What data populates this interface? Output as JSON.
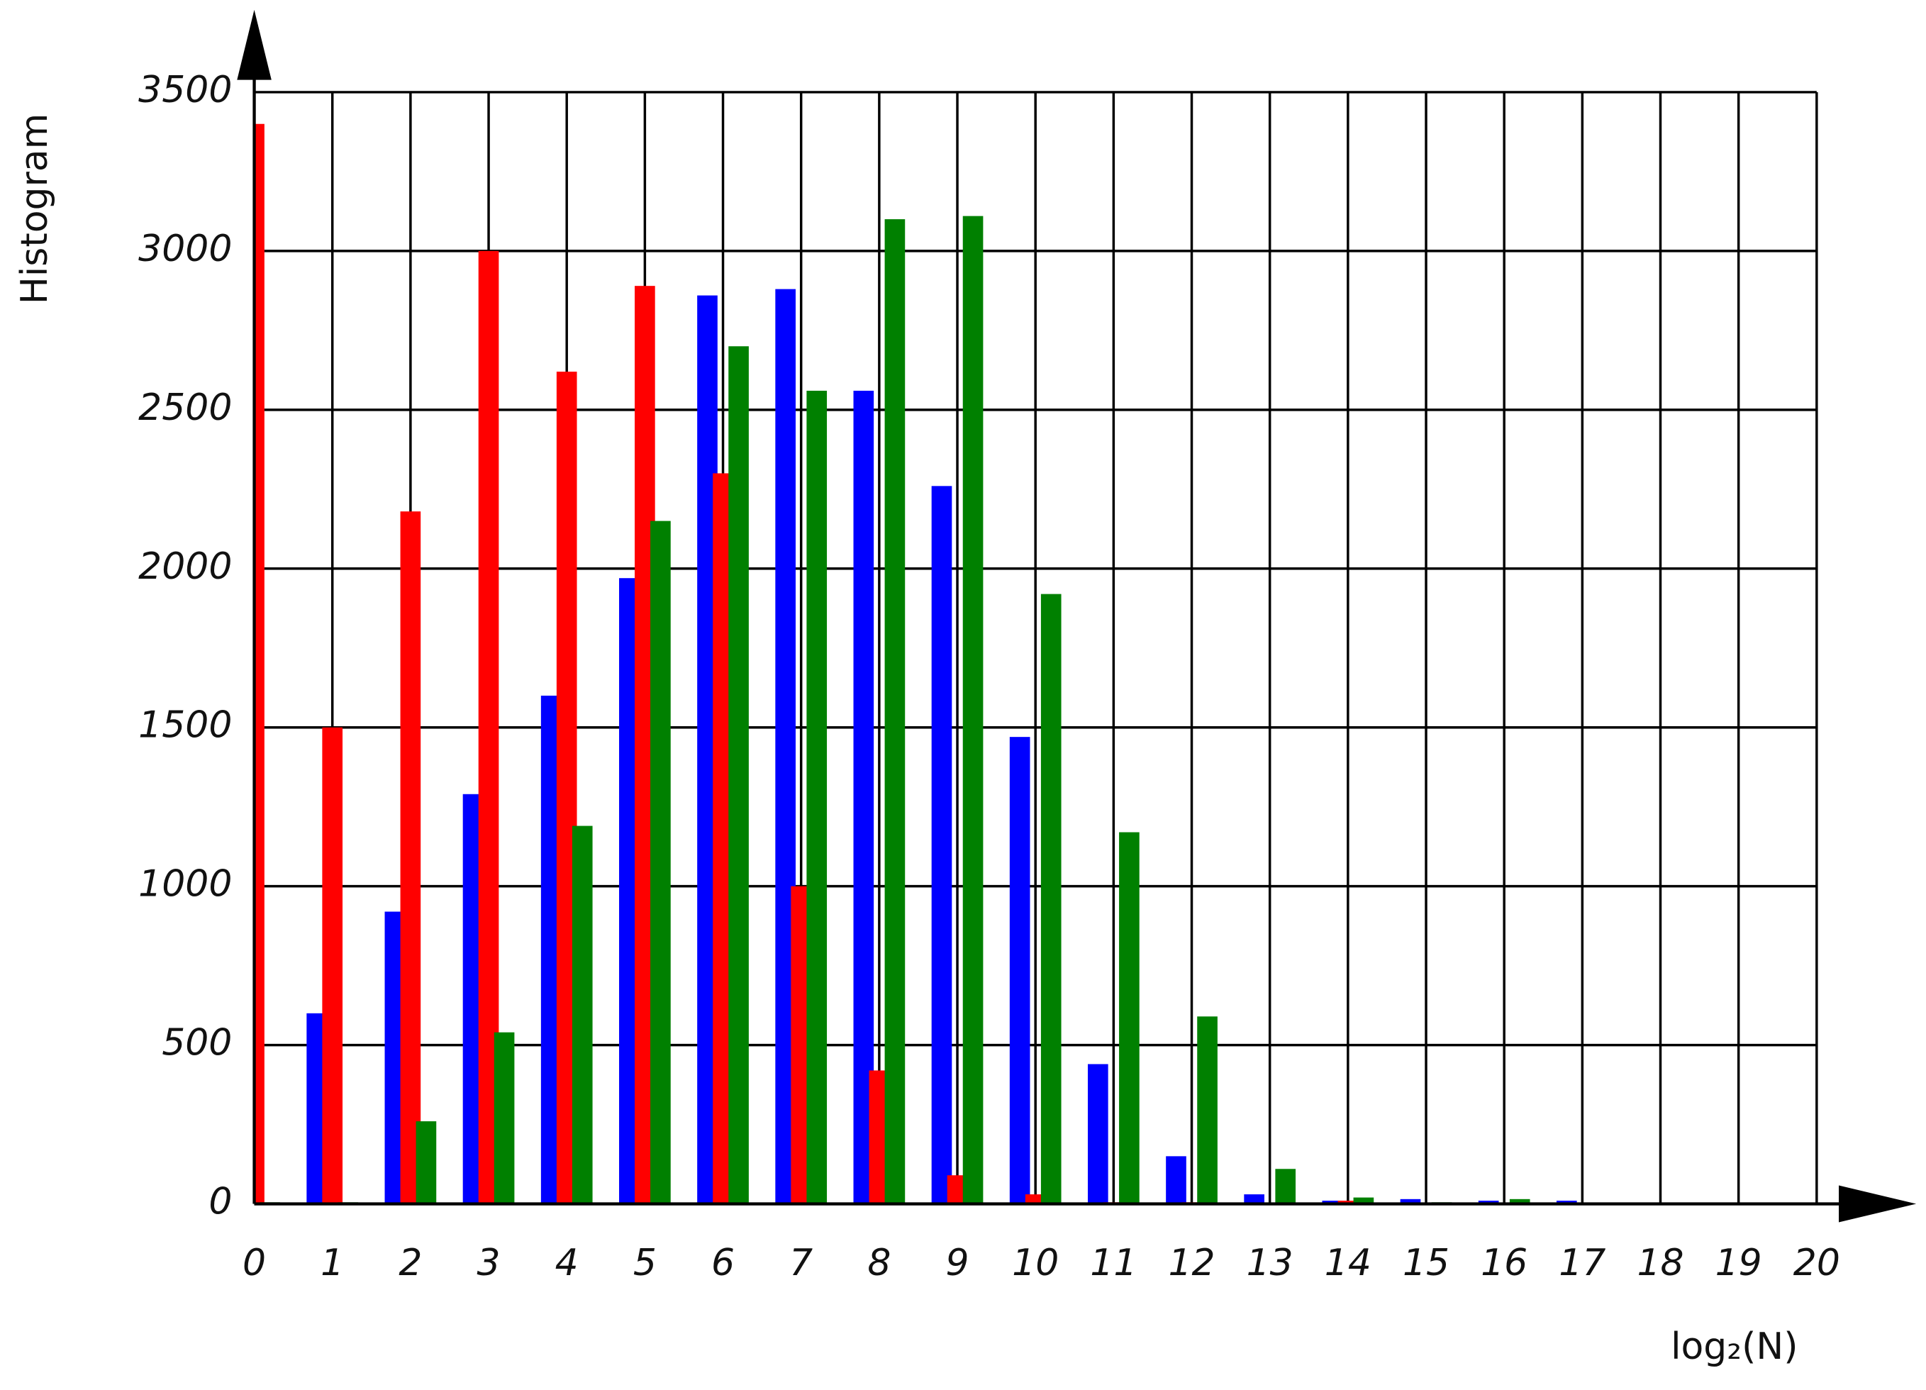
{
  "chart_data": {
    "type": "bar",
    "y_label": "Histogram",
    "x_label": "log₂(N)",
    "x": [
      0,
      1,
      2,
      3,
      4,
      5,
      6,
      7,
      8,
      9,
      10,
      11,
      12,
      13,
      14,
      15,
      16,
      17
    ],
    "series": [
      {
        "color": "#0000ff",
        "values": [
          0,
          600,
          920,
          1290,
          1600,
          1970,
          2860,
          2880,
          2560,
          2260,
          1470,
          440,
          150,
          30,
          10,
          15,
          10,
          10
        ]
      },
      {
        "color": "#ff0000",
        "values": [
          3400,
          1500,
          2180,
          3000,
          2620,
          2890,
          2300,
          1000,
          420,
          90,
          30,
          5,
          5,
          0,
          10,
          0,
          0,
          0
        ]
      },
      {
        "color": "#008000",
        "values": [
          5,
          5,
          260,
          540,
          1190,
          2150,
          2700,
          2560,
          3100,
          3110,
          1920,
          1170,
          590,
          110,
          20,
          5,
          15,
          0
        ]
      }
    ],
    "xlim": [
      0,
      20
    ],
    "xticks": [
      0,
      1,
      2,
      3,
      4,
      5,
      6,
      7,
      8,
      9,
      10,
      11,
      12,
      13,
      14,
      15,
      16,
      17,
      18,
      19,
      20
    ],
    "ylim": [
      0,
      3500
    ],
    "yticks": [
      0,
      500,
      1000,
      1500,
      2000,
      2500,
      3000,
      3500
    ],
    "grid": true
  }
}
